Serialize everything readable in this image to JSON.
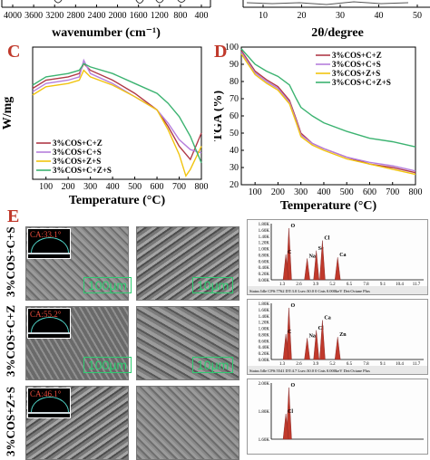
{
  "top_strip": {
    "left_ticks": [
      "4000",
      "3600",
      "3200",
      "2800",
      "2400",
      "2000",
      "1600",
      "1200",
      "800",
      "400"
    ],
    "left_xlabel": "wavenumber (cm⁻¹)",
    "right_ticks": [
      "10",
      "20",
      "30",
      "40",
      "50"
    ],
    "right_xlabel": "2θ/degree"
  },
  "panel_c": {
    "letter": "C",
    "chart_data": {
      "type": "line",
      "xlabel": "Temperature (°C)",
      "ylabel": "W/mg",
      "xlim": [
        40,
        800
      ],
      "xticks": [
        "100",
        "200",
        "300",
        "400",
        "500",
        "600",
        "700",
        "800"
      ],
      "series": [
        {
          "name": "3%COS+C+Z",
          "color": "#b03a48",
          "x": [
            40,
            100,
            200,
            250,
            270,
            300,
            400,
            500,
            600,
            650,
            700,
            750,
            800
          ],
          "y": [
            0.55,
            0.6,
            0.62,
            0.64,
            0.7,
            0.66,
            0.6,
            0.52,
            0.42,
            0.32,
            0.2,
            0.12,
            0.28
          ]
        },
        {
          "name": "3%COS+C+S",
          "color": "#b57edc",
          "x": [
            40,
            100,
            200,
            250,
            270,
            300,
            400,
            500,
            600,
            650,
            700,
            750,
            800
          ],
          "y": [
            0.53,
            0.58,
            0.6,
            0.62,
            0.72,
            0.64,
            0.58,
            0.5,
            0.42,
            0.34,
            0.24,
            0.18,
            0.16
          ]
        },
        {
          "name": "3%COS+Z+S",
          "color": "#f1c40f",
          "x": [
            40,
            100,
            200,
            250,
            270,
            300,
            400,
            500,
            600,
            650,
            700,
            730,
            750,
            800
          ],
          "y": [
            0.51,
            0.56,
            0.58,
            0.6,
            0.66,
            0.62,
            0.57,
            0.5,
            0.42,
            0.3,
            0.15,
            0.02,
            0.06,
            0.2
          ]
        },
        {
          "name": "3%COS+C+Z+S",
          "color": "#3cb371",
          "x": [
            40,
            100,
            200,
            250,
            270,
            300,
            400,
            500,
            600,
            650,
            700,
            750,
            800
          ],
          "y": [
            0.57,
            0.62,
            0.64,
            0.66,
            0.7,
            0.68,
            0.64,
            0.58,
            0.52,
            0.46,
            0.38,
            0.26,
            0.1
          ]
        }
      ]
    }
  },
  "panel_d": {
    "letter": "D",
    "chart_data": {
      "type": "line",
      "xlabel": "Temperature (°C)",
      "ylabel": "TGA (%)",
      "xlim": [
        40,
        800
      ],
      "ylim": [
        20,
        100
      ],
      "xticks": [
        "100",
        "200",
        "300",
        "400",
        "500",
        "600",
        "700",
        "800"
      ],
      "yticks": [
        "20",
        "30",
        "40",
        "50",
        "60",
        "70",
        "80",
        "90",
        "100"
      ],
      "series": [
        {
          "name": "3%COS+C+Z",
          "color": "#b03a48",
          "x": [
            40,
            100,
            150,
            200,
            250,
            280,
            300,
            350,
            400,
            500,
            600,
            700,
            800
          ],
          "y": [
            98,
            86,
            81,
            77,
            69,
            58,
            50,
            44,
            41,
            36,
            32,
            30,
            27
          ]
        },
        {
          "name": "3%COS+C+S",
          "color": "#b57edc",
          "x": [
            40,
            100,
            150,
            200,
            250,
            280,
            300,
            350,
            400,
            500,
            600,
            700,
            800
          ],
          "y": [
            97,
            85,
            80,
            76,
            68,
            57,
            49,
            44,
            41,
            36,
            33,
            31,
            28
          ]
        },
        {
          "name": "3%COS+Z+S",
          "color": "#f1c40f",
          "x": [
            40,
            100,
            150,
            200,
            250,
            280,
            300,
            350,
            400,
            500,
            600,
            700,
            800
          ],
          "y": [
            96,
            84,
            79,
            75,
            67,
            56,
            48,
            43,
            40,
            35,
            32,
            29,
            26
          ]
        },
        {
          "name": "3%COS+C+Z+S",
          "color": "#3cb371",
          "x": [
            40,
            100,
            150,
            200,
            250,
            280,
            300,
            350,
            400,
            500,
            600,
            700,
            800
          ],
          "y": [
            99,
            90,
            86,
            83,
            78,
            70,
            65,
            60,
            56,
            51,
            47,
            45,
            42
          ]
        }
      ]
    }
  },
  "panel_e": {
    "letter": "E",
    "rows": [
      {
        "label": "3%COS+C+S",
        "ca": "CA:33.1°",
        "scale_left": "100μm",
        "scale_right": "10μm"
      },
      {
        "label": "3%COS+C+Z",
        "ca": "CA:55.2°",
        "scale_left": "100μm",
        "scale_right": "10μm"
      },
      {
        "label": "3%COS+Z+S",
        "ca": "CA:46.1°",
        "scale_left": "",
        "scale_right": ""
      }
    ],
    "eds": [
      {
        "yticks": [
          "1.80K",
          "1.60K",
          "1.40K",
          "1.20K",
          "1.00K",
          "0.80K",
          "0.60K",
          "0.40K",
          "0.20K",
          "0.00K"
        ],
        "peaks": [
          "O",
          "C",
          "Na",
          "Se",
          "Cl",
          "Ca"
        ],
        "xticks": [
          "1.3",
          "2.6",
          "3.9",
          "5.2",
          "6.5",
          "7.8",
          "9.1",
          "10.4",
          "11.7"
        ],
        "status": "Status Idle  CPS:7762  DT:3.0  Lsec:30.0  0 Cnts  0.000keV  Det:Octane Plus"
      },
      {
        "yticks": [
          "1.80K",
          "1.60K",
          "1.40K",
          "1.20K",
          "1.00K",
          "0.80K",
          "0.60K",
          "0.40K",
          "0.20K",
          "0.00K"
        ],
        "peaks": [
          "O",
          "C",
          "Na",
          "Cl",
          "Ca",
          "Zn"
        ],
        "xticks": [
          "1.3",
          "2.6",
          "3.9",
          "5.2",
          "6.5",
          "7.8",
          "9.1",
          "10.4",
          "11.7"
        ],
        "status": "Status Idle  CPS:5541  DT:4.7  Lsec:30.0  0 Cnts  0.000keV  Det:Octane Plus"
      },
      {
        "yticks": [
          "2.00K",
          "1.80K",
          "1.60K"
        ],
        "peaks": [
          "O",
          "Cl"
        ],
        "xticks": [],
        "status": ""
      }
    ]
  }
}
